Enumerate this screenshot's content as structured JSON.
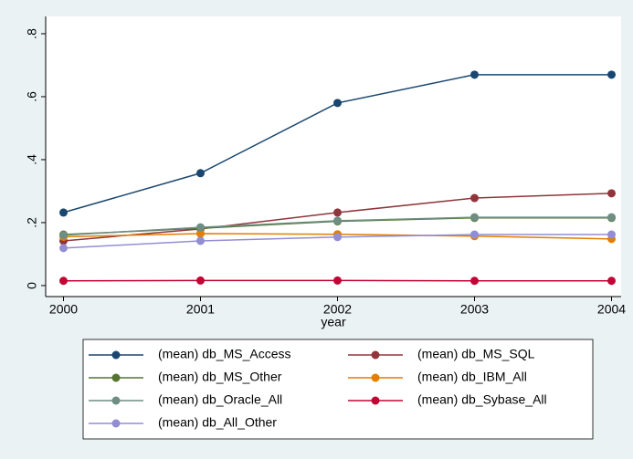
{
  "chart_data": {
    "type": "line",
    "x": [
      2000,
      2001,
      2002,
      2003,
      2004
    ],
    "xlim": [
      1999.87,
      2004.07
    ],
    "xticks": [
      2000,
      2001,
      2002,
      2003,
      2004
    ],
    "ylim": [
      -0.035,
      0.855
    ],
    "yticks": [
      0,
      {
        "value": 0.2,
        "label": ".2"
      },
      {
        "value": 0.4,
        "label": ".4"
      },
      {
        "value": 0.6,
        "label": ".6"
      },
      {
        "value": 0.8,
        "label": ".8"
      }
    ],
    "x_label": "year",
    "grid": false,
    "legend": "bottom",
    "series": [
      {
        "name": "(mean) db_MS_Access",
        "color": "#1a476f",
        "values": [
          0.232,
          0.357,
          0.58,
          0.67,
          0.67
        ]
      },
      {
        "name": "(mean) db_MS_SQL",
        "color": "#90353b",
        "values": [
          0.142,
          0.18,
          0.232,
          0.278,
          0.293
        ]
      },
      {
        "name": "(mean) db_MS_Other",
        "color": "#55752f",
        "values": [
          0.162,
          0.182,
          0.204,
          0.215,
          0.215
        ]
      },
      {
        "name": "(mean) db_IBM_All",
        "color": "#e37e00",
        "values": [
          0.155,
          0.165,
          0.163,
          0.157,
          0.148
        ]
      },
      {
        "name": "(mean) db_Oracle_All",
        "color": "#6e8e84",
        "values": [
          0.16,
          0.185,
          0.206,
          0.217,
          0.217
        ]
      },
      {
        "name": "(mean) db_Sybase_All",
        "color": "#c10534",
        "values": [
          0.015,
          0.016,
          0.016,
          0.015,
          0.015
        ]
      },
      {
        "name": "(mean) db_All_Other",
        "color": "#938dd2",
        "values": [
          0.119,
          0.142,
          0.154,
          0.162,
          0.162
        ]
      }
    ]
  }
}
